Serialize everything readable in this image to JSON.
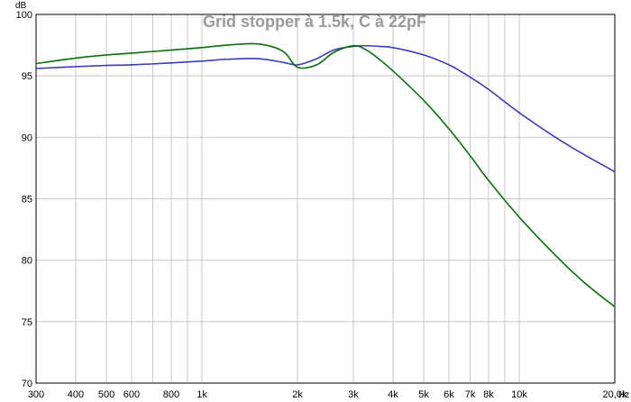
{
  "chart_data": {
    "type": "line",
    "title": "Grid stopper à 1.5k, C à 22pF",
    "ylabel": "dB",
    "xunit": "Hz",
    "xscale": "log",
    "xlim": [
      300,
      20000
    ],
    "ylim": [
      70,
      100
    ],
    "grid": true,
    "yticks": [
      70,
      75,
      80,
      85,
      90,
      95,
      100
    ],
    "xticks": [
      {
        "v": 300,
        "label": "300"
      },
      {
        "v": 400,
        "label": "400"
      },
      {
        "v": 500,
        "label": "500"
      },
      {
        "v": 600,
        "label": "600"
      },
      {
        "v": 800,
        "label": "800"
      },
      {
        "v": 1000,
        "label": "1k"
      },
      {
        "v": 2000,
        "label": "2k"
      },
      {
        "v": 3000,
        "label": "3k"
      },
      {
        "v": 4000,
        "label": "4k"
      },
      {
        "v": 5000,
        "label": "5k"
      },
      {
        "v": 6000,
        "label": "6k"
      },
      {
        "v": 7000,
        "label": "7k"
      },
      {
        "v": 8000,
        "label": "8k"
      },
      {
        "v": 10000,
        "label": "10k"
      },
      {
        "v": 20000,
        "label": "20,0k"
      }
    ],
    "minor_x": [
      700,
      900,
      9000
    ],
    "series": [
      {
        "color": "#3c3cb4",
        "x": [
          300,
          400,
          500,
          600,
          800,
          1000,
          1200,
          1500,
          1800,
          2000,
          2300,
          2600,
          3000,
          3300,
          3600,
          4000,
          5000,
          6000,
          7000,
          8000,
          10000,
          13000,
          16000,
          20000
        ],
        "y": [
          95.6,
          95.75,
          95.85,
          95.9,
          96.05,
          96.2,
          96.35,
          96.4,
          96.1,
          95.9,
          96.4,
          97.1,
          97.4,
          97.45,
          97.4,
          97.3,
          96.7,
          95.9,
          94.9,
          93.9,
          92.0,
          90.0,
          88.6,
          87.2
        ]
      },
      {
        "color": "#0a6e0a",
        "x": [
          300,
          400,
          500,
          600,
          800,
          1000,
          1200,
          1500,
          1800,
          2000,
          2300,
          2600,
          3000,
          3300,
          3600,
          4000,
          5000,
          6000,
          7000,
          8000,
          10000,
          13000,
          16000,
          20000
        ],
        "y": [
          96.0,
          96.45,
          96.7,
          96.85,
          97.1,
          97.3,
          97.5,
          97.6,
          97.0,
          95.7,
          95.9,
          96.9,
          97.45,
          97.1,
          96.4,
          95.4,
          93.0,
          90.7,
          88.5,
          86.5,
          83.5,
          80.4,
          78.2,
          76.2
        ]
      }
    ]
  }
}
